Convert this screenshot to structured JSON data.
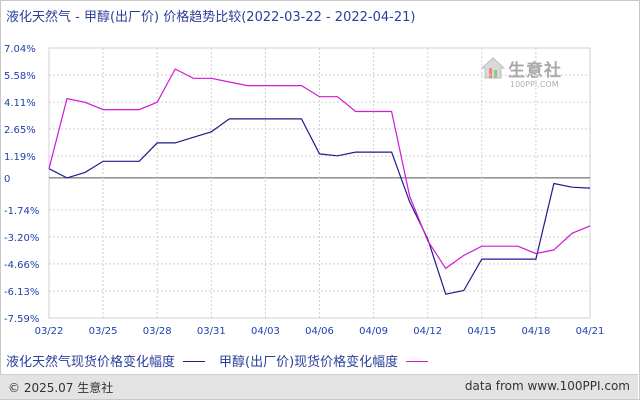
{
  "header": {
    "title": "液化天然气 - 甲醇(出厂价) 价格趋势比较",
    "date_range": "(2022-03-22 - 2022-04-21)"
  },
  "watermark": {
    "name": "生意社",
    "url": "100PPI.COM"
  },
  "footer": {
    "copyright": "© 2025.07 生意社",
    "site": "data from www.100PPI.com"
  },
  "colors": {
    "series1": "#1c1c8c",
    "series2": "#d21ad2",
    "grid": "#d0d0d0",
    "axis_text": "#1f3fae"
  },
  "chart_data": {
    "type": "line",
    "title": "液化天然气 - 甲醇(出厂价) 价格趋势比较",
    "xlabel": "",
    "ylabel": "",
    "x": [
      "03/22",
      "03/23",
      "03/24",
      "03/25",
      "03/26",
      "03/27",
      "03/28",
      "03/29",
      "03/30",
      "03/31",
      "04/01",
      "04/02",
      "04/03",
      "04/04",
      "04/05",
      "04/06",
      "04/07",
      "04/08",
      "04/09",
      "04/10",
      "04/11",
      "04/12",
      "04/13",
      "04/14",
      "04/15",
      "04/16",
      "04/17",
      "04/18",
      "04/19",
      "04/20",
      "04/21"
    ],
    "xticks": [
      "03/22",
      "03/25",
      "03/28",
      "03/31",
      "04/03",
      "04/06",
      "04/09",
      "04/12",
      "04/15",
      "04/18",
      "04/21"
    ],
    "yticks": [
      "7.04%",
      "5.58%",
      "4.11%",
      "2.65%",
      "1.19%",
      "0",
      "-1.74%",
      "-3.20%",
      "-4.66%",
      "-6.13%",
      "-7.59%"
    ],
    "ytick_values": [
      7.04,
      5.58,
      4.11,
      2.65,
      1.19,
      0,
      -1.74,
      -3.2,
      -4.66,
      -6.13,
      -7.59
    ],
    "ylim": [
      -7.59,
      7.04
    ],
    "grid": true,
    "legend_position": "bottom",
    "series": [
      {
        "name": "液化天然气现货价格变化幅度",
        "values": [
          0.5,
          0,
          0.3,
          0.9,
          0.9,
          0.9,
          1.9,
          1.9,
          2.2,
          2.5,
          3.2,
          3.2,
          3.2,
          3.2,
          3.2,
          1.3,
          1.2,
          1.4,
          1.4,
          1.4,
          -1.3,
          -3.3,
          -6.3,
          -6.1,
          -4.4,
          -4.4,
          -4.4,
          -4.4,
          -0.3,
          -0.5,
          -0.55
        ]
      },
      {
        "name": "甲醇(出厂价)现货价格变化幅度",
        "values": [
          0.5,
          4.3,
          4.1,
          3.7,
          3.7,
          3.7,
          4.1,
          5.9,
          5.4,
          5.4,
          5.2,
          5.0,
          5.0,
          5.0,
          5.0,
          4.4,
          4.4,
          3.6,
          3.6,
          3.6,
          -1.0,
          -3.4,
          -4.9,
          -4.2,
          -3.7,
          -3.7,
          -3.7,
          -4.1,
          -3.9,
          -3.0,
          -2.6
        ]
      }
    ]
  }
}
